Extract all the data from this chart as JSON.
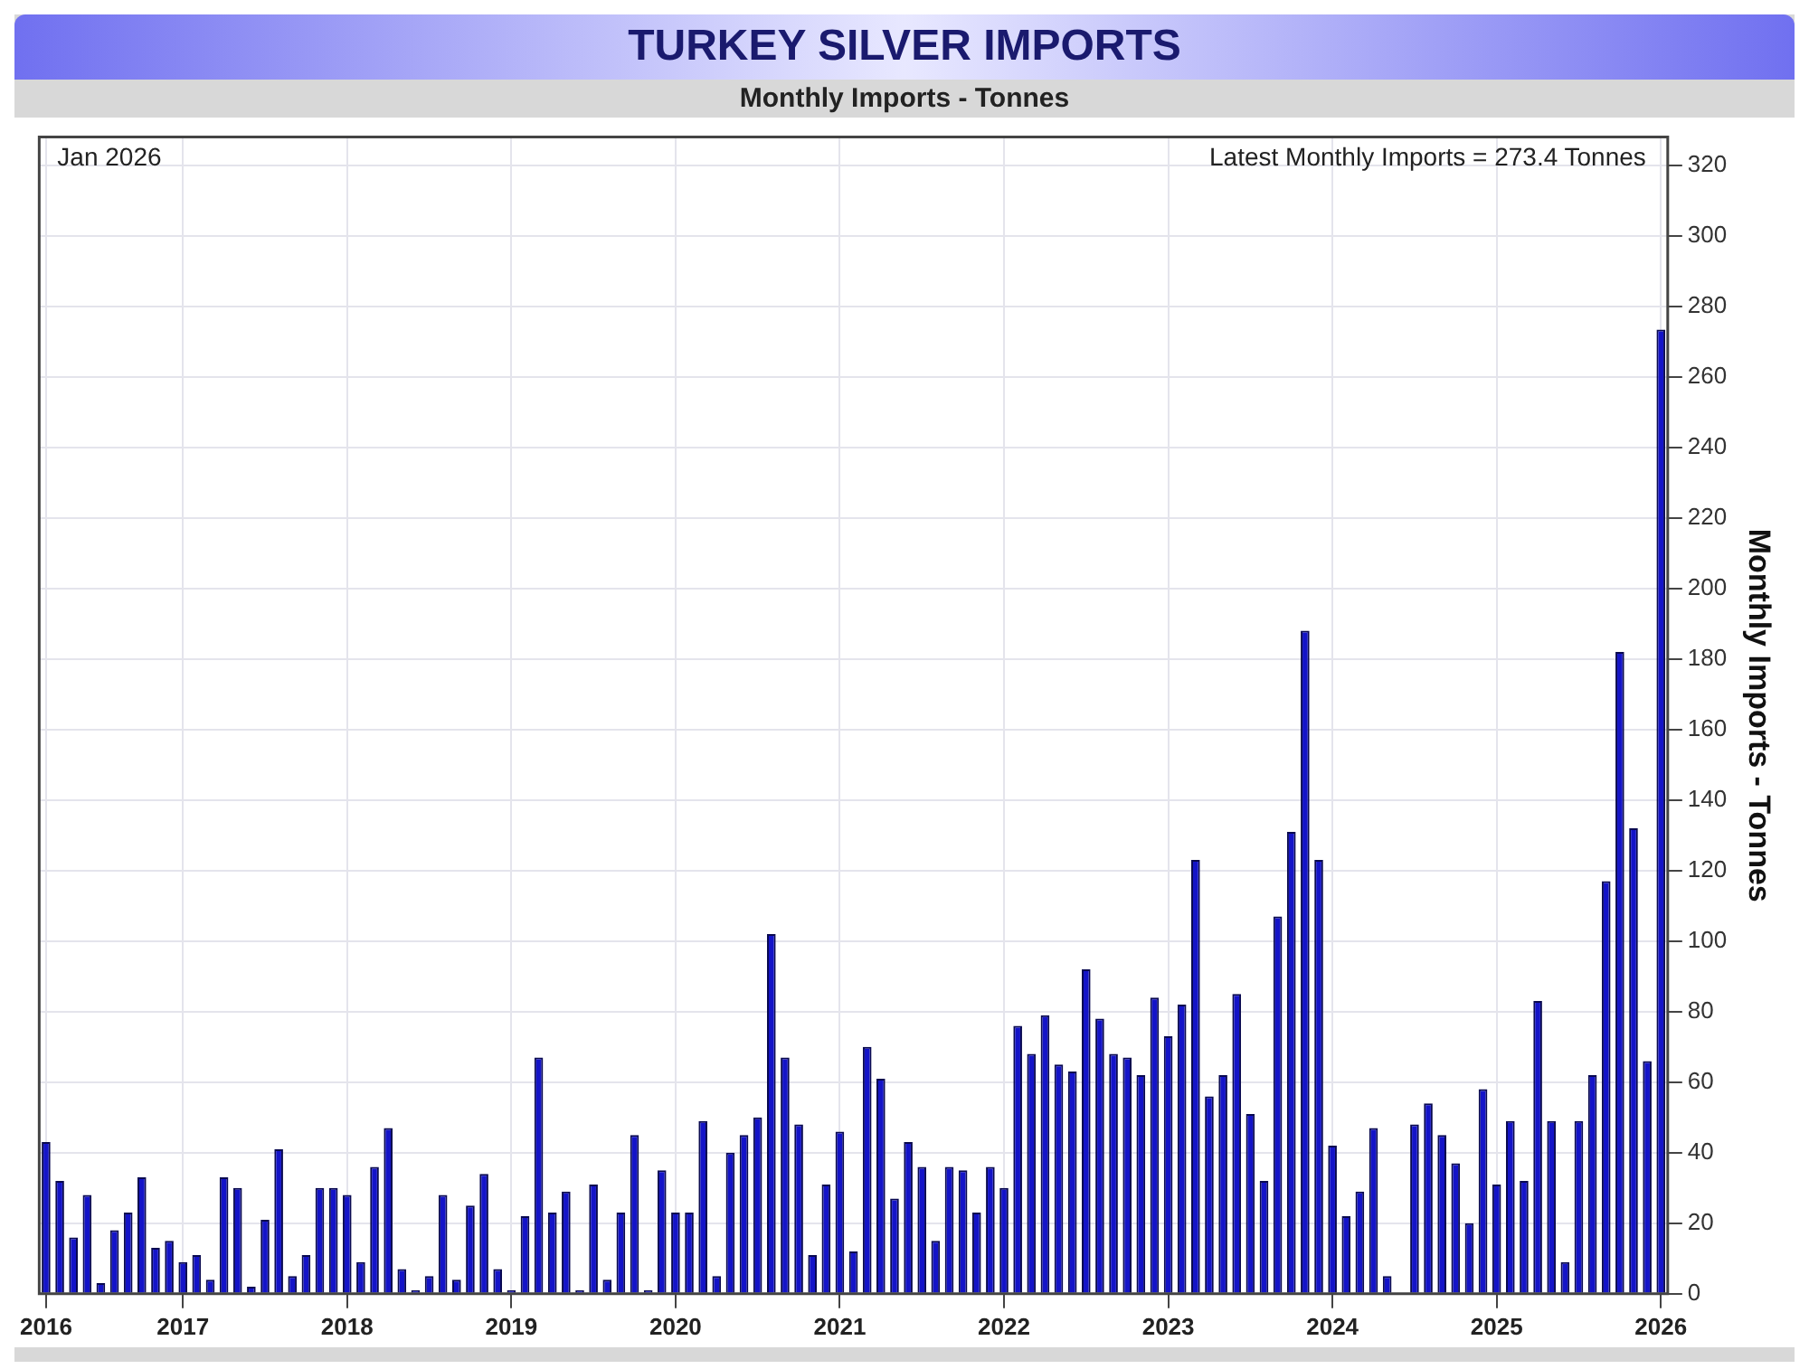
{
  "chart_data": {
    "type": "bar",
    "title": "TURKEY SILVER IMPORTS",
    "subtitle": "Monthly Imports - Tonnes",
    "ylabel": "Monthly Imports - Tonnes",
    "annotations": [
      "Jan 2026",
      "Latest Monthly Imports = 273.4 Tonnes"
    ],
    "categories": [
      "2016",
      null,
      null,
      null,
      null,
      null,
      null,
      null,
      null,
      null,
      "2017",
      null,
      null,
      null,
      null,
      null,
      null,
      null,
      null,
      null,
      null,
      null,
      "2018",
      null,
      null,
      null,
      null,
      null,
      null,
      null,
      null,
      null,
      null,
      null,
      "2019",
      null,
      null,
      null,
      null,
      null,
      null,
      null,
      null,
      null,
      null,
      null,
      "2020",
      null,
      null,
      null,
      null,
      null,
      null,
      null,
      null,
      null,
      null,
      null,
      "2021",
      null,
      null,
      null,
      null,
      null,
      null,
      null,
      null,
      null,
      null,
      null,
      "2022",
      null,
      null,
      null,
      null,
      null,
      null,
      null,
      null,
      null,
      null,
      null,
      "2023",
      null,
      null,
      null,
      null,
      null,
      null,
      null,
      null,
      null,
      null,
      null,
      "2024",
      null,
      null,
      null,
      null,
      null,
      null,
      null,
      null,
      null,
      null,
      null,
      "2025",
      null,
      null,
      null,
      null,
      null,
      null,
      null,
      null,
      null,
      null,
      null,
      "2026"
    ],
    "values": [
      43,
      32,
      16,
      28,
      3,
      18,
      23,
      33,
      13,
      15,
      9,
      11,
      4,
      33,
      30,
      2,
      21,
      41,
      5,
      11,
      30,
      30,
      28,
      9,
      36,
      47,
      7,
      1,
      5,
      28,
      4,
      25,
      34,
      7,
      1,
      22,
      67,
      23,
      29,
      1,
      31,
      4,
      23,
      45,
      1,
      35,
      23,
      23,
      49,
      5,
      40,
      45,
      50,
      102,
      67,
      48,
      11,
      31,
      46,
      12,
      70,
      61,
      27,
      43,
      36,
      15,
      36,
      35,
      23,
      36,
      30,
      76,
      68,
      79,
      65,
      63,
      92,
      78,
      68,
      67,
      62,
      84,
      73,
      82,
      123,
      56,
      62,
      85,
      51,
      32,
      107,
      131,
      188,
      123,
      42,
      22,
      29,
      47,
      5,
      null,
      48,
      54,
      45,
      37,
      20,
      58,
      31,
      49,
      32,
      83,
      49,
      9,
      49,
      62,
      117,
      182,
      132,
      66,
      273.4
    ],
    "color": "#1414c8",
    "ylim": [
      0,
      328
    ],
    "yticks": [
      0,
      20,
      40,
      60,
      80,
      100,
      120,
      140,
      160,
      180,
      200,
      220,
      240,
      260,
      280,
      300,
      320
    ],
    "grid": true
  }
}
